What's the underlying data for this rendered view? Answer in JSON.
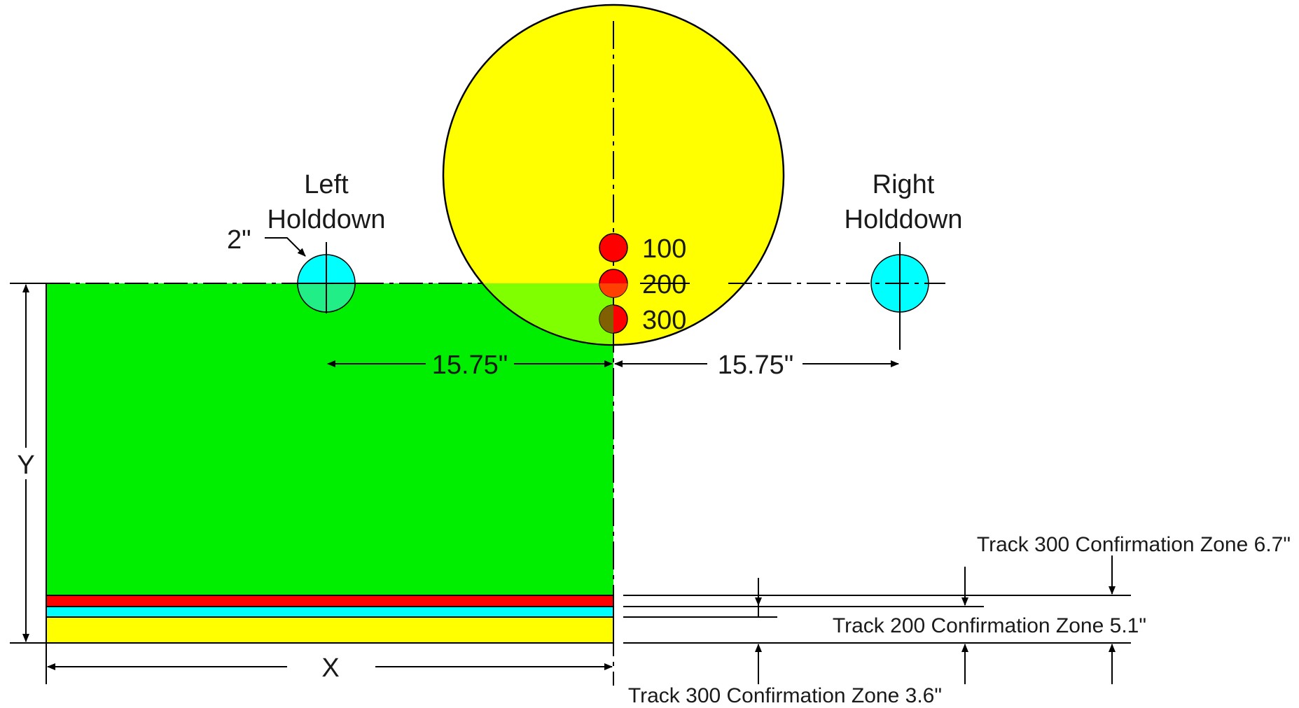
{
  "labels": {
    "left_holddown_line1": "Left",
    "left_holddown_line2": "Holddown",
    "right_holddown_line1": "Right",
    "right_holddown_line2": "Holddown",
    "diameter": "2\"",
    "dim_left": "15.75\"",
    "dim_right": "15.75\"",
    "x_axis": "X",
    "y_axis": "Y",
    "track_100": "100",
    "track_200": "200",
    "track_300": "300",
    "zone_top": "Track 300 Confirmation Zone 6.7\"",
    "zone_mid": "Track 200 Confirmation Zone 5.1\"",
    "zone_bottom": "Track 300  Confirmation Zone 3.6\""
  },
  "colors": {
    "board": "#00ee00",
    "large_disc": "#ffff00",
    "holddown": "#00ffff",
    "track_marker": "#ff0000",
    "strip_red": "#ff0000",
    "strip_cyan": "#00ffff",
    "strip_yellow": "#ffff00",
    "overlap": "#80ff00",
    "line": "#000000"
  }
}
